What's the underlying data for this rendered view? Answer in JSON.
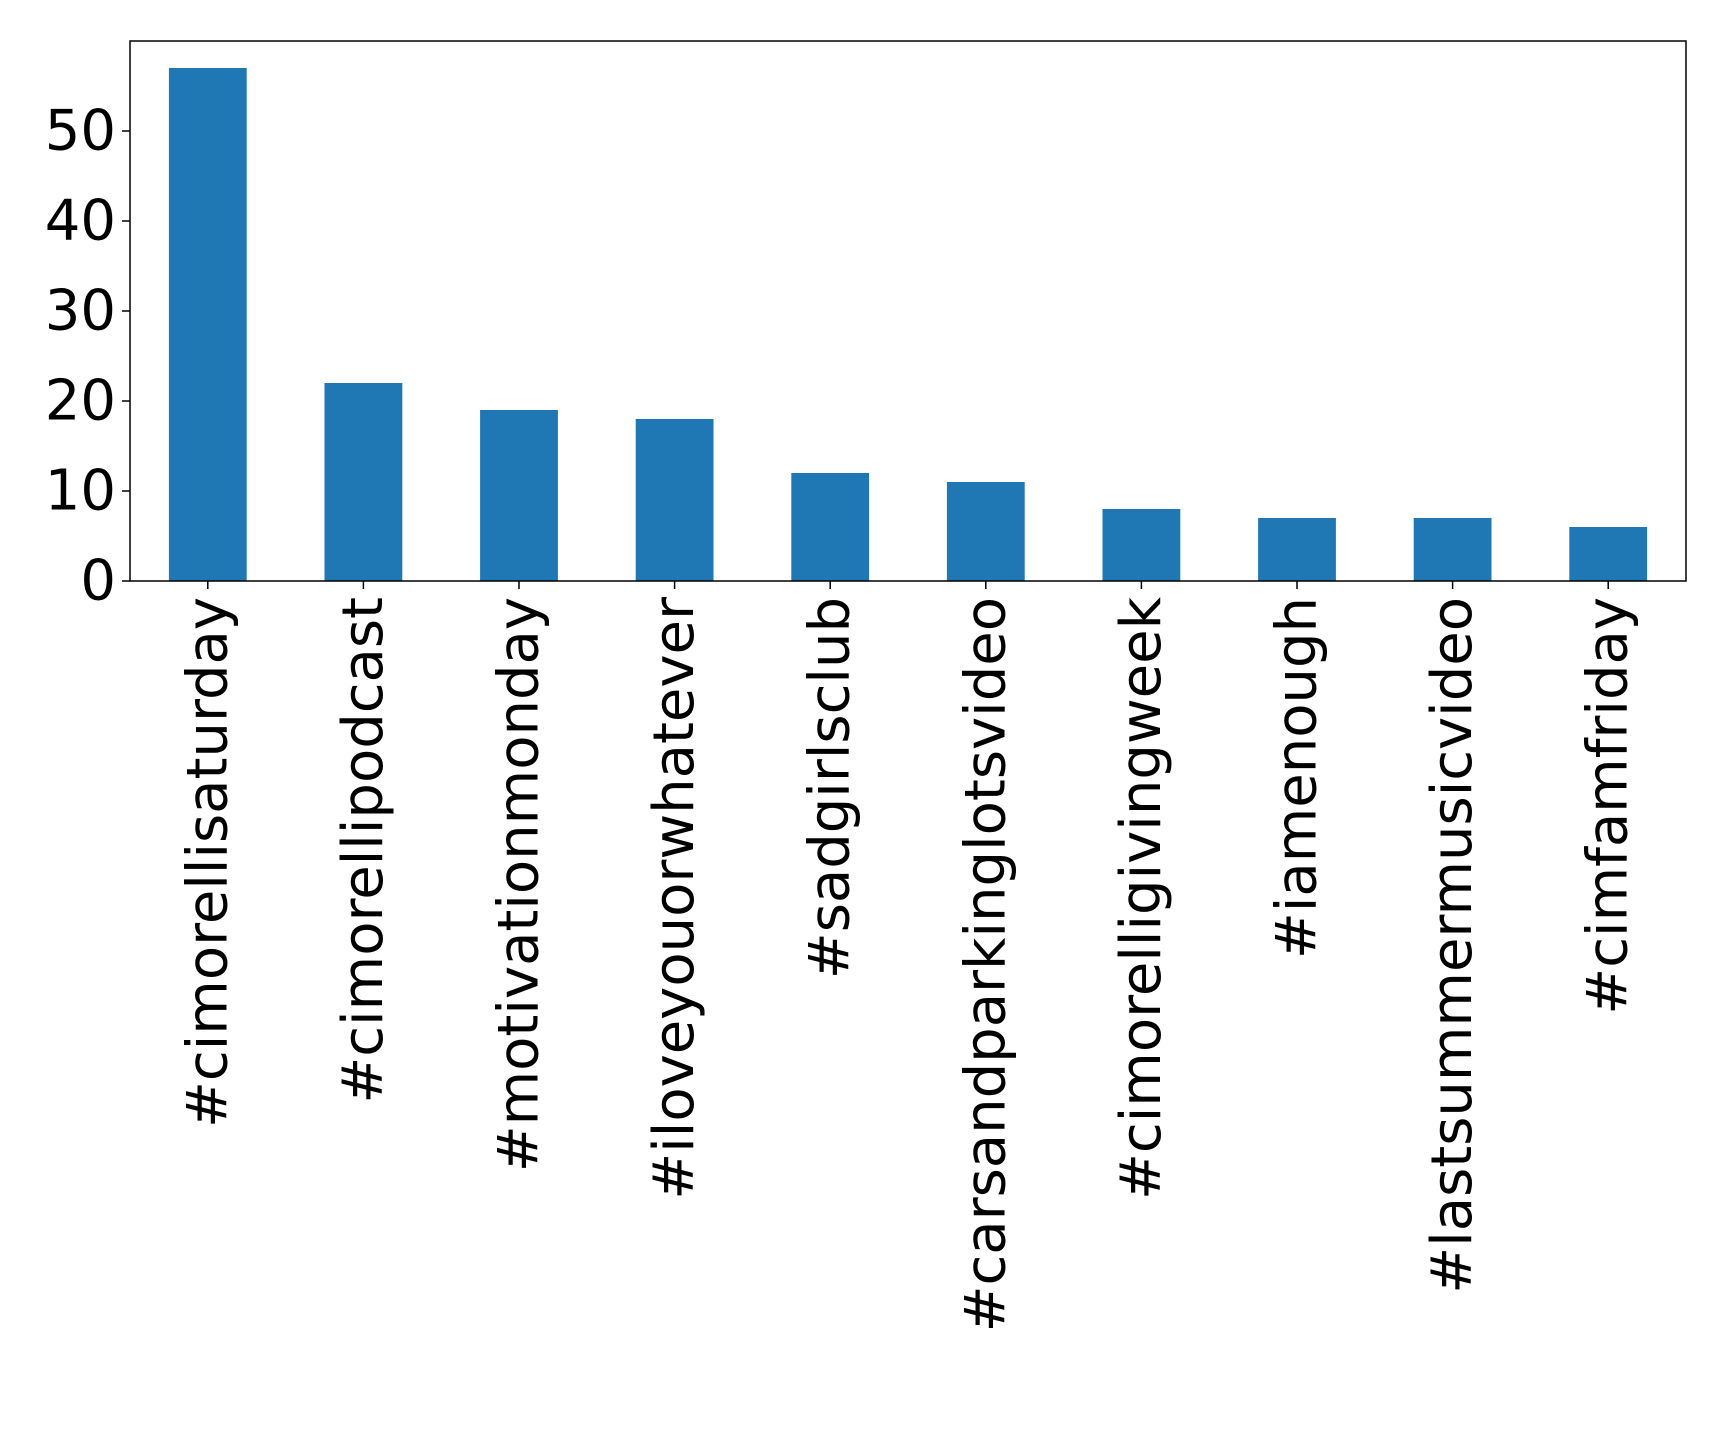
{
  "chart_data": {
    "type": "bar",
    "categories": [
      "#cimorellisaturday",
      "#cimorellipodcast",
      "#motivationmonday",
      "#iloveyouorwhatever",
      "#sadgirlsclub",
      "#carsandparkinglotsvideo",
      "#cimorelligivingweek",
      "#iamenough",
      "#lastsummermusicvideo",
      "#cimfamfriday"
    ],
    "values": [
      57,
      22,
      19,
      18,
      12,
      11,
      8,
      7,
      7,
      6
    ],
    "title": "",
    "xlabel": "",
    "ylabel": "",
    "ylim": [
      0,
      60
    ],
    "yticks": [
      0,
      10,
      20,
      30,
      40,
      50
    ],
    "bar_color": "#1f77b4",
    "grid": false,
    "legend": "none"
  }
}
